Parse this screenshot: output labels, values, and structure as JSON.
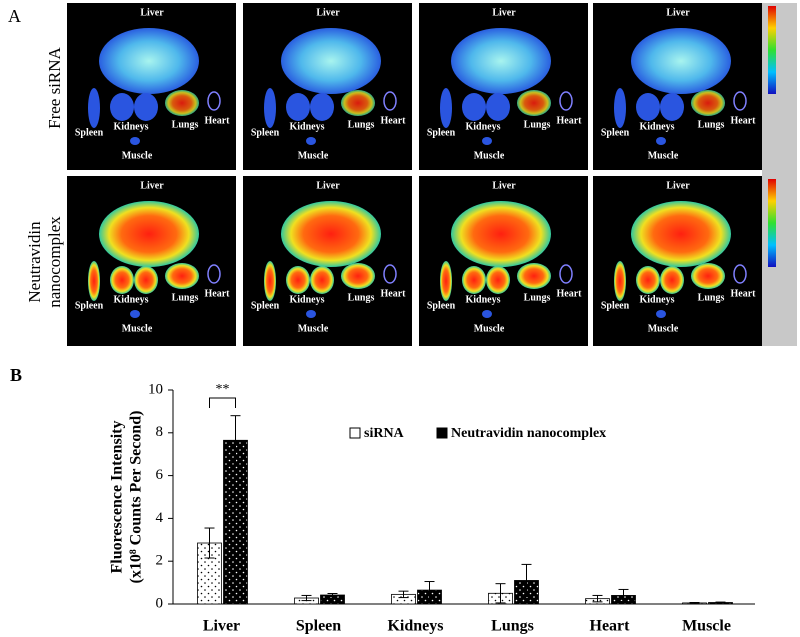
{
  "panel_a": {
    "label": "A",
    "rows": [
      "Free siRNA",
      "Neutravidin nanocomplex"
    ],
    "organs": [
      "Liver",
      "Spleen",
      "Kidneys",
      "Lungs",
      "Heart",
      "Muscle"
    ]
  },
  "chart_data": {
    "type": "bar",
    "panel_label": "B",
    "categories": [
      "Liver",
      "Spleen",
      "Kidneys",
      "Lungs",
      "Heart",
      "Muscle"
    ],
    "series": [
      {
        "name": "siRNA",
        "color": "#ffffff",
        "values": [
          2.85,
          0.28,
          0.45,
          0.5,
          0.25,
          0.05
        ],
        "errors": [
          0.7,
          0.12,
          0.15,
          0.45,
          0.15,
          0.02
        ]
      },
      {
        "name": "Neutravidin nanocomplex",
        "color": "#000000",
        "values": [
          7.65,
          0.42,
          0.65,
          1.1,
          0.4,
          0.07
        ],
        "errors": [
          1.15,
          0.07,
          0.4,
          0.75,
          0.28,
          0.02
        ]
      }
    ],
    "y_label": [
      "Fluorescence Intensity",
      "(x10⁸ Counts Per Second)"
    ],
    "ylim": [
      0,
      10
    ],
    "yticks": [
      0,
      2,
      4,
      6,
      8,
      10
    ],
    "annotation": "**"
  }
}
